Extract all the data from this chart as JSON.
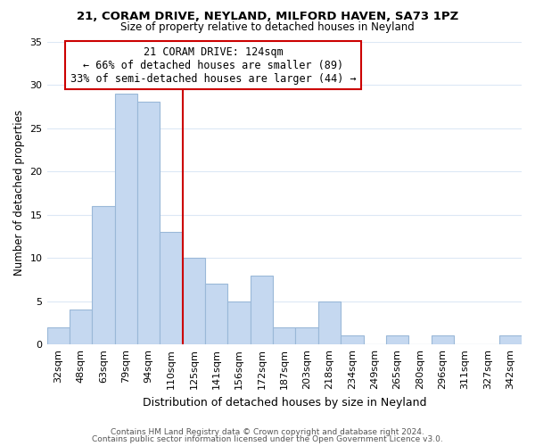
{
  "title1": "21, CORAM DRIVE, NEYLAND, MILFORD HAVEN, SA73 1PZ",
  "title2": "Size of property relative to detached houses in Neyland",
  "xlabel": "Distribution of detached houses by size in Neyland",
  "ylabel": "Number of detached properties",
  "bar_labels": [
    "32sqm",
    "48sqm",
    "63sqm",
    "79sqm",
    "94sqm",
    "110sqm",
    "125sqm",
    "141sqm",
    "156sqm",
    "172sqm",
    "187sqm",
    "203sqm",
    "218sqm",
    "234sqm",
    "249sqm",
    "265sqm",
    "280sqm",
    "296sqm",
    "311sqm",
    "327sqm",
    "342sqm"
  ],
  "bar_values": [
    2,
    4,
    16,
    29,
    28,
    13,
    10,
    7,
    5,
    8,
    2,
    2,
    5,
    1,
    0,
    1,
    0,
    1,
    0,
    0,
    1
  ],
  "bar_color": "#c5d8f0",
  "bar_edge_color": "#9ab8d8",
  "vline_color": "#cc0000",
  "ylim": [
    0,
    35
  ],
  "yticks": [
    0,
    5,
    10,
    15,
    20,
    25,
    30,
    35
  ],
  "annotation_title": "21 CORAM DRIVE: 124sqm",
  "annotation_line1": "← 66% of detached houses are smaller (89)",
  "annotation_line2": "33% of semi-detached houses are larger (44) →",
  "annotation_box_color": "#ffffff",
  "annotation_box_edge": "#cc0000",
  "footer1": "Contains HM Land Registry data © Crown copyright and database right 2024.",
  "footer2": "Contains public sector information licensed under the Open Government Licence v3.0.",
  "background_color": "#ffffff",
  "grid_color": "#dce8f5"
}
